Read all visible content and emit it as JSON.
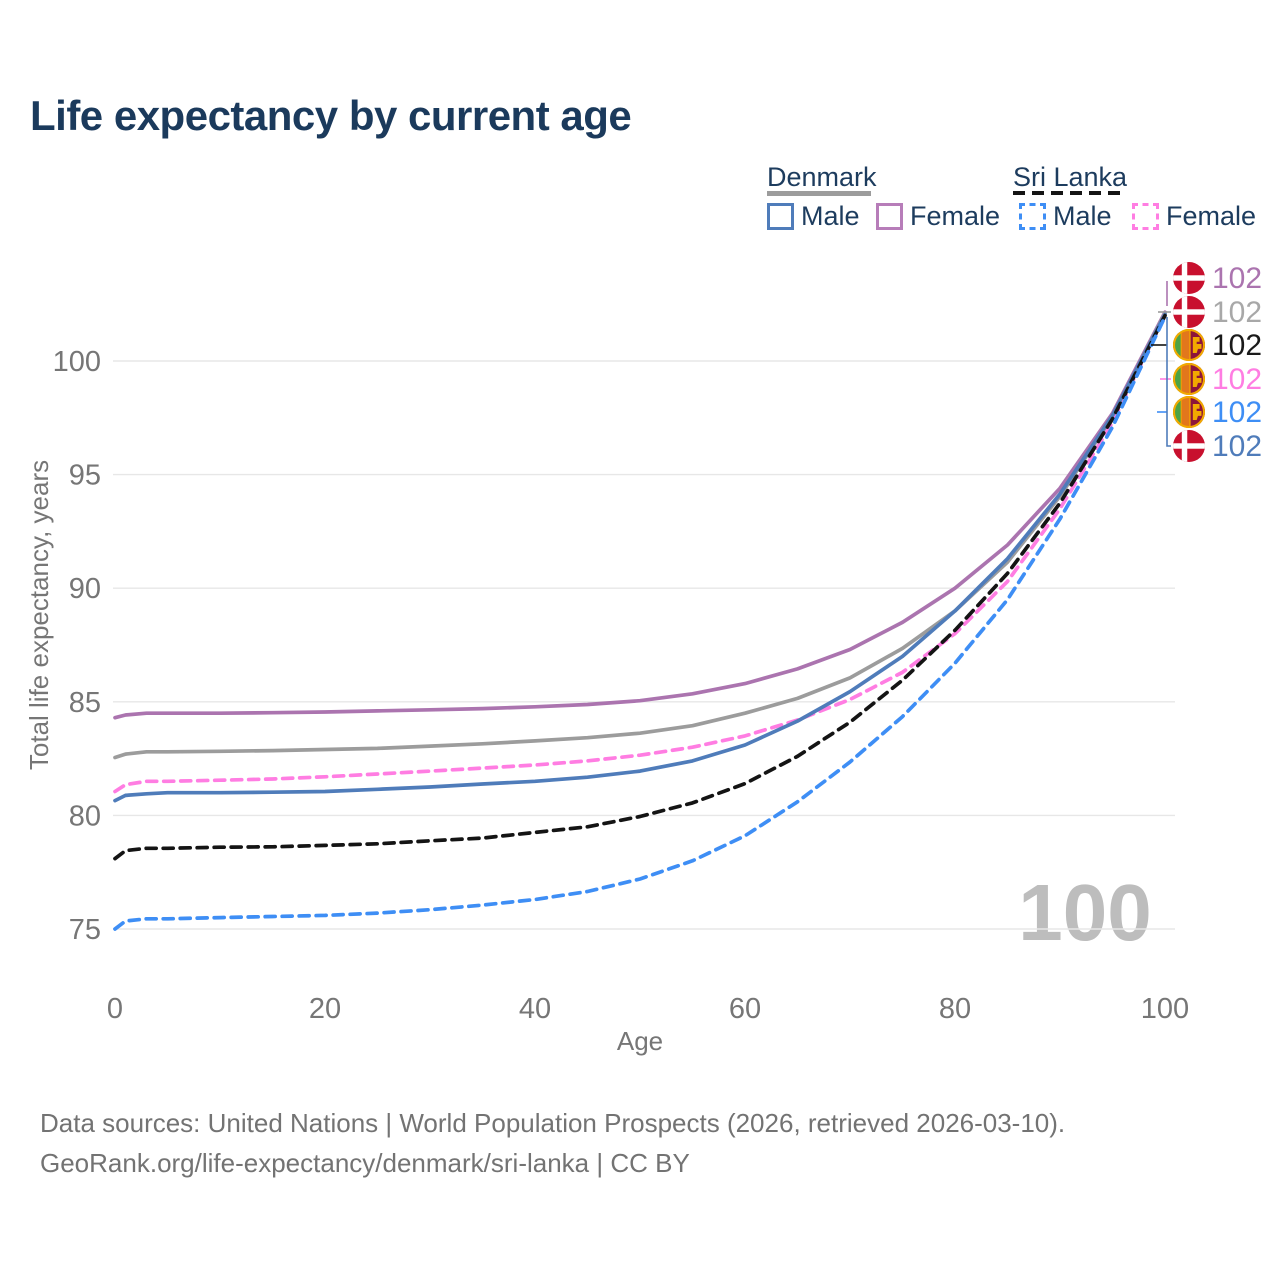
{
  "title": "Life expectancy by current age",
  "legend": {
    "groups": [
      {
        "id": "denmark",
        "label": "Denmark",
        "line_style": "solid"
      },
      {
        "id": "sri-lanka",
        "label": "Sri Lanka",
        "line_style": "dashed"
      }
    ],
    "male_label": "Male",
    "female_label": "Female"
  },
  "chart_data": {
    "type": "line",
    "title": "Life expectancy by current age",
    "xlabel": "Age",
    "ylabel": "Total life expectancy, years",
    "x_ticks": [
      0,
      20,
      40,
      60,
      80,
      100
    ],
    "y_ticks": [
      75,
      80,
      85,
      90,
      95,
      100
    ],
    "xlim": [
      0,
      100
    ],
    "ylim": [
      73.5,
      103
    ],
    "grid": "horizontal-only",
    "legend_position": "top-right",
    "watermark_age": "100",
    "ages": [
      0,
      1,
      3,
      5,
      10,
      15,
      20,
      25,
      30,
      35,
      40,
      45,
      50,
      55,
      60,
      65,
      70,
      75,
      80,
      85,
      90,
      95,
      100
    ],
    "series": [
      {
        "id": "dk-female",
        "name": "Denmark Female",
        "country": "denmark",
        "sex": "female",
        "color": "#ab74af",
        "label_color": "#ab74af",
        "dash": false,
        "end_label": "102",
        "values": [
          84.3,
          84.42,
          84.5,
          84.5,
          84.5,
          84.52,
          84.55,
          84.6,
          84.65,
          84.7,
          84.78,
          84.88,
          85.05,
          85.35,
          85.8,
          86.45,
          87.3,
          88.5,
          90.0,
          91.9,
          94.4,
          97.7,
          102.15
        ]
      },
      {
        "id": "dk-both",
        "name": "Denmark Both sexes",
        "country": "denmark",
        "sex": "both",
        "color": "#9c9c9c",
        "label_color": "#a8a8a8",
        "dash": false,
        "end_label": "102",
        "values": [
          82.55,
          82.7,
          82.8,
          82.8,
          82.82,
          82.85,
          82.9,
          82.95,
          83.05,
          83.15,
          83.28,
          83.42,
          83.62,
          83.95,
          84.5,
          85.15,
          86.05,
          87.35,
          89.0,
          91.15,
          94.05,
          97.55,
          102.1
        ]
      },
      {
        "id": "sl-female",
        "name": "Sri Lanka Female",
        "country": "sri-lanka",
        "sex": "female",
        "color": "#ff7de2",
        "label_color": "#ff7de2",
        "dash": true,
        "end_label": "102",
        "values": [
          81.05,
          81.35,
          81.5,
          81.5,
          81.55,
          81.6,
          81.7,
          81.82,
          81.95,
          82.08,
          82.22,
          82.4,
          82.65,
          83.0,
          83.5,
          84.2,
          85.1,
          86.3,
          88.0,
          90.3,
          93.5,
          97.3,
          102.0
        ]
      },
      {
        "id": "dk-male",
        "name": "Denmark Male",
        "country": "denmark",
        "sex": "male",
        "color": "#4f7cba",
        "label_color": "#4f7cba",
        "dash": false,
        "end_label": "102",
        "values": [
          80.65,
          80.88,
          80.95,
          81.0,
          81.0,
          81.02,
          81.05,
          81.15,
          81.25,
          81.38,
          81.5,
          81.68,
          81.95,
          82.4,
          83.1,
          84.15,
          85.45,
          87.0,
          89.0,
          91.3,
          94.15,
          97.6,
          102.05
        ]
      },
      {
        "id": "sl-both",
        "name": "Sri Lanka Both sexes",
        "country": "sri-lanka",
        "sex": "both",
        "color": "#141414",
        "label_color": "#1a1a1a",
        "dash": true,
        "end_label": "102",
        "values": [
          78.1,
          78.45,
          78.55,
          78.55,
          78.6,
          78.62,
          78.68,
          78.75,
          78.88,
          79.0,
          79.25,
          79.5,
          79.95,
          80.55,
          81.4,
          82.6,
          84.1,
          85.95,
          88.15,
          90.65,
          93.75,
          97.45,
          102.0
        ]
      },
      {
        "id": "sl-male",
        "name": "Sri Lanka Male",
        "country": "sri-lanka",
        "sex": "male",
        "color": "#3e8ef5",
        "label_color": "#3e8ef5",
        "dash": true,
        "end_label": "102",
        "values": [
          75.0,
          75.35,
          75.45,
          75.45,
          75.5,
          75.55,
          75.6,
          75.7,
          75.85,
          76.05,
          76.3,
          76.65,
          77.2,
          78.0,
          79.1,
          80.6,
          82.35,
          84.35,
          86.7,
          89.5,
          93.05,
          97.1,
          101.95
        ]
      }
    ],
    "right_label_order": [
      "dk-female",
      "dk-both",
      "sl-both",
      "sl-female",
      "sl-male",
      "dk-male"
    ]
  },
  "footer": {
    "line1": "Data sources: United Nations | World Population Prospects (2026, retrieved 2026-03-10).",
    "line2": "GeoRank.org/life-expectancy/denmark/sri-lanka | CC BY"
  }
}
